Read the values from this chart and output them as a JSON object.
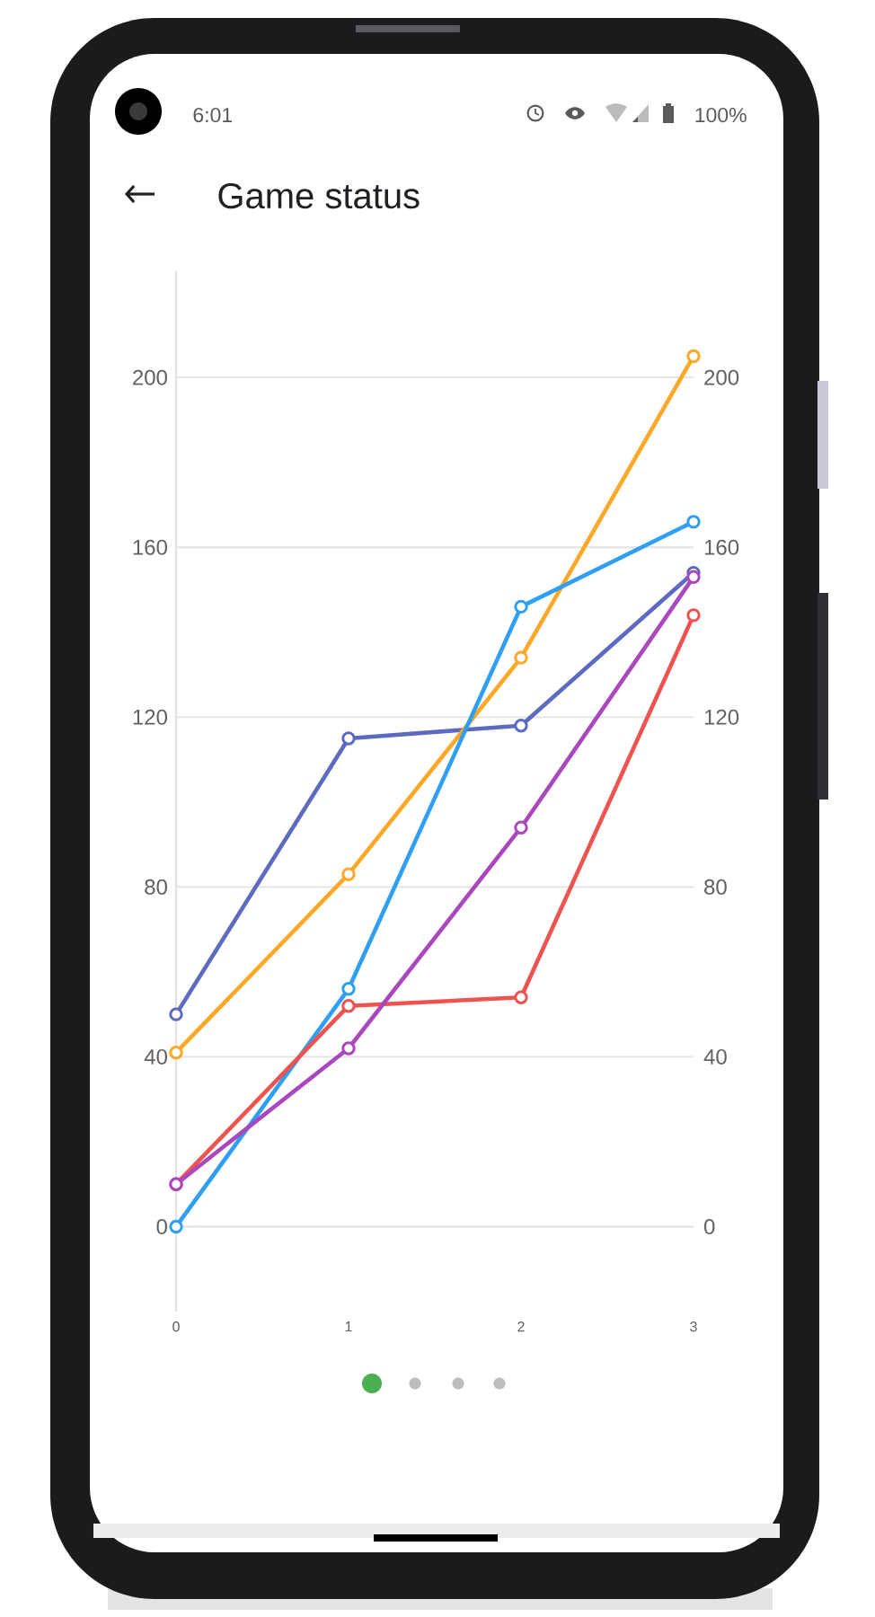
{
  "chart_data": {
    "type": "line",
    "title": "Game status",
    "x": [
      0,
      1,
      2,
      3
    ],
    "series": [
      {
        "color": "#5c6bc0",
        "values": [
          50,
          115,
          118,
          154
        ]
      },
      {
        "color": "#ffa726",
        "values": [
          41,
          83,
          134,
          205
        ]
      },
      {
        "color": "#2e9ff2",
        "values": [
          0,
          56,
          146,
          166
        ]
      },
      {
        "color": "#ef5350",
        "values": [
          10,
          52,
          54,
          144
        ]
      },
      {
        "color": "#ab47bc",
        "values": [
          10,
          42,
          94,
          153
        ]
      }
    ],
    "xlim": [
      0,
      3
    ],
    "xticks": [
      0,
      1,
      2,
      3
    ],
    "ylim": [
      -20,
      225
    ],
    "yticks": [
      0,
      40,
      80,
      120,
      160,
      200
    ],
    "y2lim": [
      -20,
      225
    ],
    "y2ticks": [
      0,
      40,
      80,
      120,
      160,
      200
    ],
    "grid": "y",
    "marker": "circle",
    "line_style": "solid",
    "annotations": [
      "6:01",
      "100%"
    ]
  }
}
